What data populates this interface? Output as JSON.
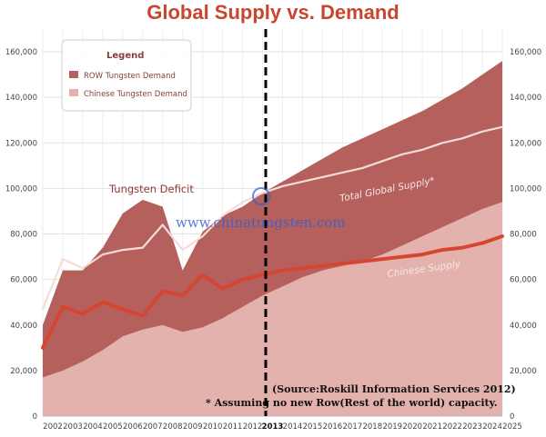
{
  "chart_data": {
    "type": "area",
    "title": "Global Supply vs. Demand",
    "years": [
      "2002",
      "2003",
      "2004",
      "2005",
      "2006",
      "2007",
      "2008",
      "2009",
      "2010",
      "2011",
      "2012",
      "2013",
      "2014",
      "2015",
      "2016",
      "2017",
      "2018",
      "2019",
      "2020",
      "2021",
      "2022",
      "2023",
      "2024",
      "2025"
    ],
    "highlight_year": "2013",
    "ylim": [
      0,
      170000
    ],
    "yticks": [
      "0",
      "20,000",
      "40,000",
      "60,000",
      "80,000",
      "100,000",
      "120,000",
      "140,000",
      "160,000"
    ],
    "ytick_values": [
      0,
      20000,
      40000,
      60000,
      80000,
      100000,
      120000,
      140000,
      160000
    ],
    "legend": {
      "title": "Legend",
      "placement": "top-left",
      "entries": [
        {
          "label": "ROW Tungsten Demand",
          "color": "#b5605d"
        },
        {
          "label": "Chinese Tungsten Demand",
          "color": "#e4b2ad"
        }
      ]
    },
    "series": [
      {
        "name": "ROW Tungsten Demand",
        "kind": "area",
        "color": "#b5605d",
        "points": [
          [
            2002,
            40000
          ],
          [
            2003,
            64000
          ],
          [
            2004,
            64000
          ],
          [
            2005,
            74000
          ],
          [
            2006,
            89000
          ],
          [
            2007,
            95000
          ],
          [
            2008,
            92000
          ],
          [
            2009,
            64000
          ],
          [
            2010,
            81000
          ],
          [
            2011,
            88000
          ],
          [
            2012,
            92000
          ],
          [
            2013,
            98000
          ],
          [
            2014,
            103000
          ],
          [
            2015,
            108000
          ],
          [
            2016,
            113000
          ],
          [
            2017,
            118000
          ],
          [
            2018,
            122000
          ],
          [
            2019,
            126000
          ],
          [
            2020,
            130000
          ],
          [
            2021,
            134000
          ],
          [
            2022,
            139000
          ],
          [
            2023,
            144000
          ],
          [
            2024,
            150000
          ],
          [
            2025,
            156000
          ]
        ]
      },
      {
        "name": "Chinese Tungsten Demand",
        "kind": "area",
        "color": "#e4b2ad",
        "points": [
          [
            2002,
            17000
          ],
          [
            2003,
            20000
          ],
          [
            2004,
            24000
          ],
          [
            2005,
            29000
          ],
          [
            2006,
            35000
          ],
          [
            2007,
            38000
          ],
          [
            2008,
            40000
          ],
          [
            2009,
            37000
          ],
          [
            2010,
            39000
          ],
          [
            2011,
            43000
          ],
          [
            2012,
            48000
          ],
          [
            2013,
            53000
          ],
          [
            2014,
            57000
          ],
          [
            2015,
            61000
          ],
          [
            2016,
            64000
          ],
          [
            2017,
            66000
          ],
          [
            2018,
            68000
          ],
          [
            2019,
            71000
          ],
          [
            2020,
            75000
          ],
          [
            2021,
            79000
          ],
          [
            2022,
            83000
          ],
          [
            2023,
            87000
          ],
          [
            2024,
            91000
          ],
          [
            2025,
            94000
          ]
        ]
      },
      {
        "name": "Total Global Supply*",
        "kind": "line",
        "color": "#f4dcd8",
        "points": [
          [
            2002,
            47000
          ],
          [
            2003,
            69000
          ],
          [
            2004,
            65000
          ],
          [
            2005,
            71000
          ],
          [
            2006,
            73000
          ],
          [
            2007,
            74000
          ],
          [
            2008,
            84000
          ],
          [
            2009,
            73000
          ],
          [
            2010,
            79000
          ],
          [
            2011,
            88000
          ],
          [
            2012,
            94000
          ],
          [
            2013,
            98000
          ],
          [
            2014,
            101000
          ],
          [
            2015,
            103000
          ],
          [
            2016,
            105000
          ],
          [
            2017,
            107000
          ],
          [
            2018,
            109000
          ],
          [
            2019,
            112000
          ],
          [
            2020,
            115000
          ],
          [
            2021,
            117000
          ],
          [
            2022,
            120000
          ],
          [
            2023,
            122000
          ],
          [
            2024,
            125000
          ],
          [
            2025,
            127000
          ]
        ]
      },
      {
        "name": "Chinese Supply",
        "kind": "line",
        "color": "#d44632",
        "points": [
          [
            2002,
            30000
          ],
          [
            2003,
            48000
          ],
          [
            2004,
            45000
          ],
          [
            2005,
            50000
          ],
          [
            2006,
            47000
          ],
          [
            2007,
            44000
          ],
          [
            2008,
            55000
          ],
          [
            2009,
            53000
          ],
          [
            2010,
            62000
          ],
          [
            2011,
            56000
          ],
          [
            2012,
            60000
          ],
          [
            2013,
            62000
          ],
          [
            2014,
            64000
          ],
          [
            2015,
            65000
          ],
          [
            2016,
            66000
          ],
          [
            2017,
            67000
          ],
          [
            2018,
            68000
          ],
          [
            2019,
            69000
          ],
          [
            2020,
            70000
          ],
          [
            2021,
            71000
          ],
          [
            2022,
            73000
          ],
          [
            2023,
            74000
          ],
          [
            2024,
            76000
          ],
          [
            2025,
            79000
          ]
        ]
      }
    ],
    "annotations": {
      "deficit": "Tungsten Deficit",
      "total_supply": "Total Global Supply*",
      "chinese_supply": "Chinese Supply",
      "source_line1": "(Source:Roskill Information Services 2012)",
      "source_line2": "* Assuming no new Row(Rest of the world) capacity."
    },
    "watermark": "www.chinatungsten.com",
    "grid": true
  }
}
